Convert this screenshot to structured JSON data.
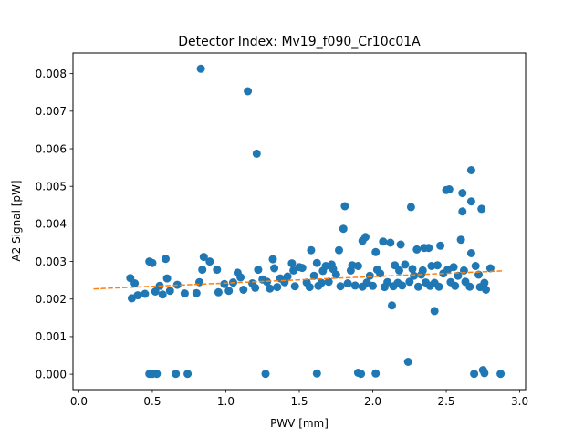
{
  "chart_data": {
    "type": "scatter",
    "title": "Detector Index: Mv19_f090_Cr10c01A",
    "xlabel": "PWV [mm]",
    "ylabel": "A2 Signal [pW]",
    "xlim": [
      -0.04,
      3.04
    ],
    "ylim": [
      -0.00041,
      0.00855
    ],
    "xticks": [
      0.0,
      0.5,
      1.0,
      1.5,
      2.0,
      2.5,
      3.0
    ],
    "xtick_labels": [
      "0.0",
      "0.5",
      "1.0",
      "1.5",
      "2.0",
      "2.5",
      "3.0"
    ],
    "yticks": [
      0.0,
      0.001,
      0.002,
      0.003,
      0.004,
      0.005,
      0.006,
      0.007,
      0.008
    ],
    "ytick_labels": [
      "0.000",
      "0.001",
      "0.002",
      "0.003",
      "0.004",
      "0.005",
      "0.006",
      "0.007",
      "0.008"
    ],
    "grid": false,
    "colors": {
      "points": "#1f77b4",
      "fit": "#ff7f0e"
    },
    "series": [
      {
        "name": "measurements",
        "kind": "scatter",
        "points": [
          [
            0.83,
            0.00813
          ],
          [
            1.15,
            0.00753
          ],
          [
            1.21,
            0.00587
          ],
          [
            2.67,
            0.00543
          ],
          [
            2.52,
            0.00492
          ],
          [
            2.5,
            0.0049
          ],
          [
            2.61,
            0.00482
          ],
          [
            2.67,
            0.0046
          ],
          [
            1.81,
            0.00447
          ],
          [
            2.26,
            0.00445
          ],
          [
            2.74,
            0.0044
          ],
          [
            2.61,
            0.00433
          ],
          [
            1.8,
            0.00387
          ],
          [
            1.95,
            0.00365
          ],
          [
            2.6,
            0.00358
          ],
          [
            1.93,
            0.00355
          ],
          [
            2.07,
            0.00353
          ],
          [
            2.12,
            0.0035
          ],
          [
            2.19,
            0.00345
          ],
          [
            2.46,
            0.00342
          ],
          [
            2.35,
            0.00336
          ],
          [
            2.38,
            0.00336
          ],
          [
            2.3,
            0.00332
          ],
          [
            1.58,
            0.0033
          ],
          [
            1.77,
            0.0033
          ],
          [
            2.02,
            0.00325
          ],
          [
            2.67,
            0.00322
          ],
          [
            0.85,
            0.00312
          ],
          [
            0.59,
            0.00307
          ],
          [
            1.32,
            0.00306
          ],
          [
            0.48,
            0.003
          ],
          [
            0.89,
            0.003
          ],
          [
            0.5,
            0.00296
          ],
          [
            1.62,
            0.00296
          ],
          [
            1.45,
            0.00295
          ],
          [
            2.8,
            0.00282
          ],
          [
            0.84,
            0.00278
          ],
          [
            0.94,
            0.00278
          ],
          [
            1.5,
            0.00285
          ],
          [
            1.52,
            0.00283
          ],
          [
            1.68,
            0.00288
          ],
          [
            1.72,
            0.00292
          ],
          [
            1.86,
            0.0029
          ],
          [
            1.9,
            0.00288
          ],
          [
            2.15,
            0.0029
          ],
          [
            2.22,
            0.00292
          ],
          [
            2.4,
            0.00288
          ],
          [
            2.44,
            0.0029
          ],
          [
            2.55,
            0.00285
          ],
          [
            2.7,
            0.00288
          ],
          [
            0.35,
            0.00256
          ],
          [
            1.1,
            0.00258
          ],
          [
            1.25,
            0.00252
          ],
          [
            1.37,
            0.00255
          ],
          [
            1.42,
            0.0026
          ],
          [
            1.6,
            0.00262
          ],
          [
            1.75,
            0.00265
          ],
          [
            1.98,
            0.00262
          ],
          [
            2.05,
            0.00268
          ],
          [
            2.28,
            0.00262
          ],
          [
            2.33,
            0.00265
          ],
          [
            2.48,
            0.00268
          ],
          [
            2.58,
            0.00262
          ],
          [
            2.72,
            0.00265
          ],
          [
            0.38,
            0.00242
          ],
          [
            0.55,
            0.00235
          ],
          [
            0.67,
            0.00238
          ],
          [
            0.82,
            0.00245
          ],
          [
            0.99,
            0.0024
          ],
          [
            1.05,
            0.00244
          ],
          [
            1.18,
            0.00242
          ],
          [
            1.28,
            0.00246
          ],
          [
            1.4,
            0.00245
          ],
          [
            1.55,
            0.00244
          ],
          [
            1.65,
            0.00243
          ],
          [
            1.7,
            0.00246
          ],
          [
            1.83,
            0.00242
          ],
          [
            1.96,
            0.00244
          ],
          [
            2.1,
            0.00245
          ],
          [
            2.17,
            0.00243
          ],
          [
            2.25,
            0.00246
          ],
          [
            2.36,
            0.00244
          ],
          [
            2.42,
            0.00243
          ],
          [
            2.53,
            0.00245
          ],
          [
            2.63,
            0.00246
          ],
          [
            2.76,
            0.00243
          ],
          [
            0.36,
            0.00202
          ],
          [
            0.4,
            0.0021
          ],
          [
            0.45,
            0.00214
          ],
          [
            0.52,
            0.0022
          ],
          [
            0.57,
            0.00212
          ],
          [
            0.62,
            0.00222
          ],
          [
            0.72,
            0.00215
          ],
          [
            0.8,
            0.00216
          ],
          [
            0.95,
            0.00218
          ],
          [
            1.02,
            0.00222
          ],
          [
            1.12,
            0.00225
          ],
          [
            1.2,
            0.0023
          ],
          [
            1.3,
            0.00228
          ],
          [
            1.35,
            0.00232
          ],
          [
            1.47,
            0.00234
          ],
          [
            1.57,
            0.00232
          ],
          [
            1.63,
            0.00235
          ],
          [
            1.78,
            0.00234
          ],
          [
            1.88,
            0.00236
          ],
          [
            1.93,
            0.00233
          ],
          [
            2.0,
            0.00235
          ],
          [
            2.08,
            0.00232
          ],
          [
            2.14,
            0.00234
          ],
          [
            2.2,
            0.00236
          ],
          [
            2.31,
            0.00233
          ],
          [
            2.39,
            0.00235
          ],
          [
            2.45,
            0.00233
          ],
          [
            2.56,
            0.00235
          ],
          [
            2.66,
            0.00233
          ],
          [
            2.73,
            0.00232
          ],
          [
            2.77,
            0.00225
          ],
          [
            0.6,
            0.00255
          ],
          [
            1.08,
            0.0027
          ],
          [
            1.22,
            0.00278
          ],
          [
            1.33,
            0.00282
          ],
          [
            1.46,
            0.00276
          ],
          [
            1.66,
            0.00275
          ],
          [
            1.73,
            0.0028
          ],
          [
            1.85,
            0.00276
          ],
          [
            2.03,
            0.00278
          ],
          [
            2.18,
            0.00276
          ],
          [
            2.27,
            0.0028
          ],
          [
            2.34,
            0.00276
          ],
          [
            2.51,
            0.00278
          ],
          [
            2.62,
            0.00276
          ],
          [
            2.13,
            0.00183
          ],
          [
            2.42,
            0.00168
          ],
          [
            0.48,
            1e-05
          ],
          [
            0.5,
            1e-05
          ],
          [
            0.53,
            1e-05
          ],
          [
            0.66,
            1e-05
          ],
          [
            0.74,
            1e-05
          ],
          [
            1.27,
            1e-05
          ],
          [
            1.62,
            2e-05
          ],
          [
            1.9,
            4e-05
          ],
          [
            1.92,
            1e-05
          ],
          [
            2.02,
            2e-05
          ],
          [
            2.24,
            0.00033
          ],
          [
            2.69,
            1e-05
          ],
          [
            2.75,
            0.00011
          ],
          [
            2.76,
            3e-05
          ],
          [
            2.87,
            1e-05
          ]
        ]
      },
      {
        "name": "linear fit",
        "kind": "dashed-line",
        "x": [
          0.1,
          2.88
        ],
        "y": [
          0.00227,
          0.00275
        ]
      }
    ]
  }
}
